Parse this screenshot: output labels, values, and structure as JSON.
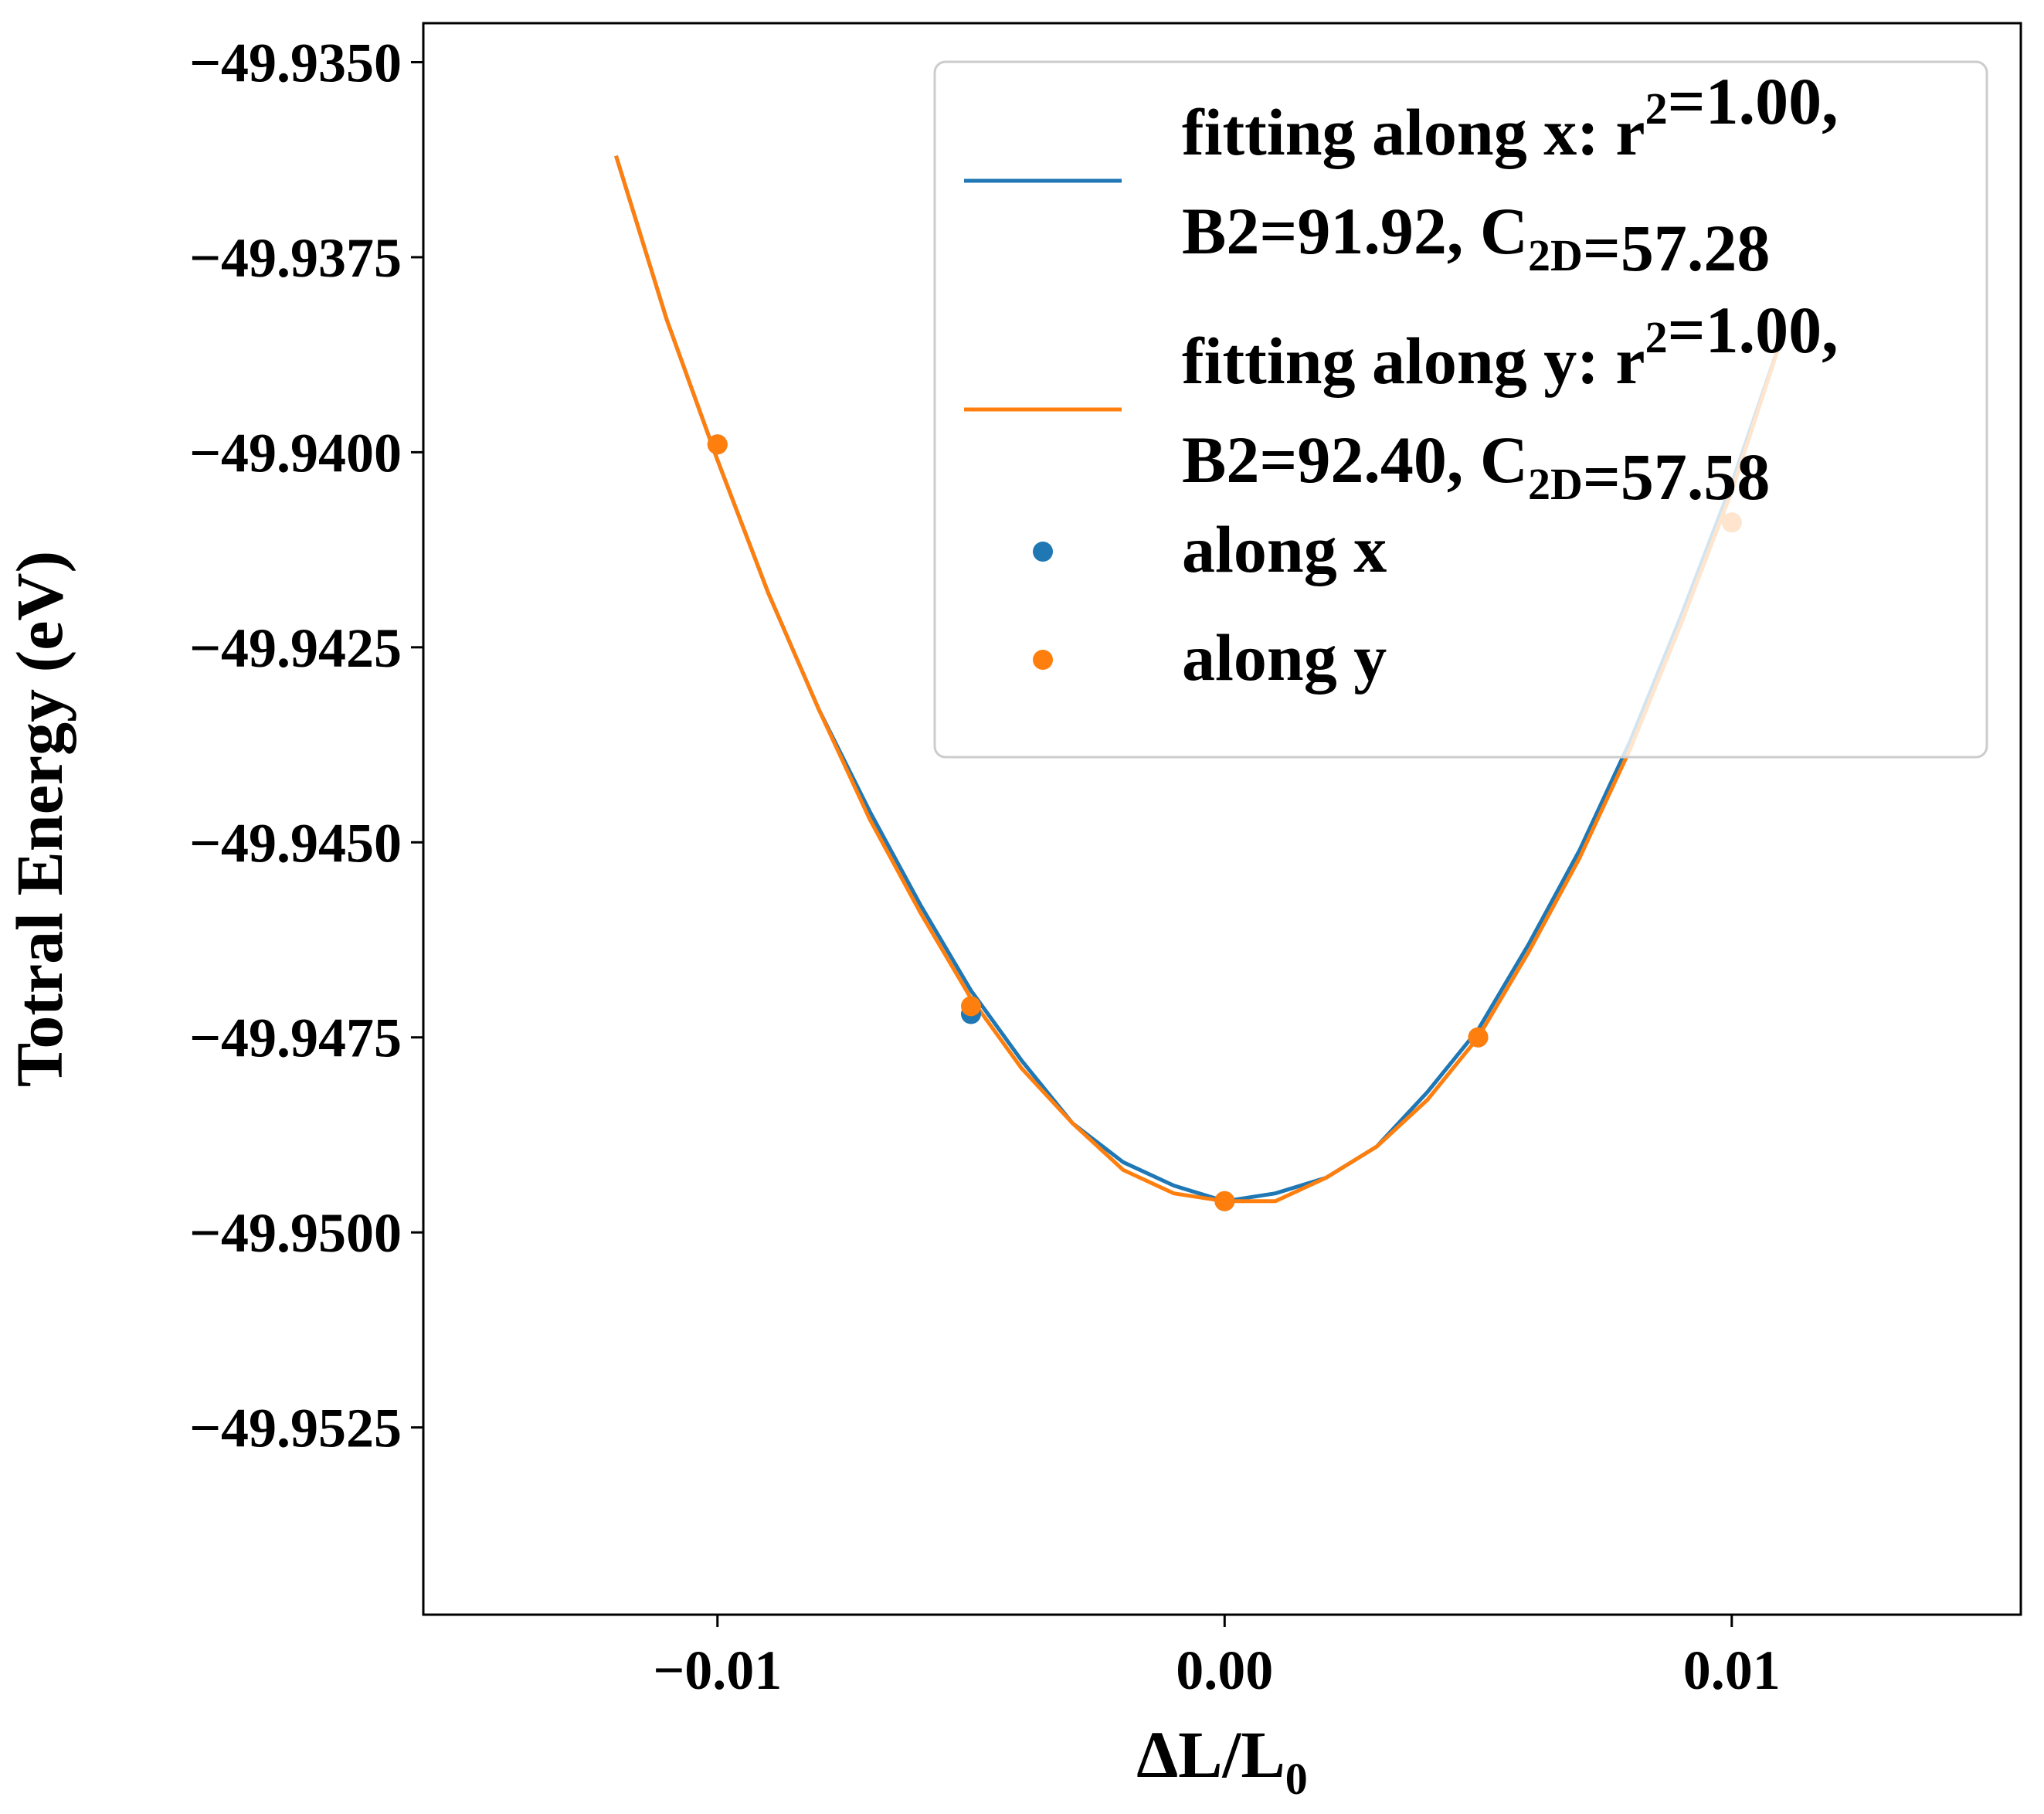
{
  "chart_data": {
    "type": "line",
    "xlabel": "ΔL/L",
    "xlabel_subscript": "0",
    "ylabel": "Totral Energy (eV)",
    "xlim": [
      -0.0158,
      0.0157
    ],
    "ylim": [
      -49.9549,
      -49.9345
    ],
    "xticks": [
      -0.01,
      0.0,
      0.01
    ],
    "xtick_labels": [
      "−0.01",
      "0.00",
      "0.01"
    ],
    "yticks": [
      -49.935,
      -49.9375,
      -49.94,
      -49.9425,
      -49.945,
      -49.9475,
      -49.95,
      -49.9525
    ],
    "ytick_labels": [
      "−49.9350",
      "−49.9375",
      "−49.9400",
      "−49.9425",
      "−49.9450",
      "−49.9475",
      "−49.9500",
      "−49.9525"
    ],
    "grid": false,
    "legend_placement": "upper right",
    "colors": {
      "x": "#1f77b4",
      "y": "#ff7f0e"
    },
    "series": [
      {
        "kind": "line",
        "color": "#1f77b4",
        "legend_lines": [
          [
            {
              "t": "fitting along x: r"
            },
            {
              "t": "2",
              "sup": true
            },
            {
              "t": "=1.00,"
            }
          ],
          [
            {
              "t": "B2=91.92, C"
            },
            {
              "t": "2D",
              "sub": true
            },
            {
              "t": "=57.28"
            }
          ]
        ],
        "x": [
          -0.012,
          -0.011,
          -0.01,
          -0.009,
          -0.008,
          -0.007,
          -0.006,
          -0.005,
          -0.004,
          -0.003,
          -0.002,
          -0.001,
          0.0,
          0.001,
          0.002,
          0.003,
          0.004,
          0.005,
          0.006,
          0.007,
          0.008,
          0.009,
          0.01,
          0.011
        ],
        "y": [
          -49.9362,
          -49.9383,
          -49.9401,
          -49.9418,
          -49.9433,
          -49.9446,
          -49.9458,
          -49.9469,
          -49.9478,
          -49.9486,
          -49.9491,
          -49.9494,
          -49.9496,
          -49.9495,
          -49.9493,
          -49.9489,
          -49.9482,
          -49.9474,
          -49.9463,
          -49.9451,
          -49.9437,
          -49.9421,
          -49.9404,
          -49.9385
        ]
      },
      {
        "kind": "line",
        "color": "#ff7f0e",
        "legend_lines": [
          [
            {
              "t": "fitting along y: r"
            },
            {
              "t": "2",
              "sup": true
            },
            {
              "t": "=1.00,"
            }
          ],
          [
            {
              "t": "B2=92.40, C"
            },
            {
              "t": "2D",
              "sub": true
            },
            {
              "t": "=57.58"
            }
          ]
        ],
        "x": [
          -0.012,
          -0.011,
          -0.01,
          -0.009,
          -0.008,
          -0.007,
          -0.006,
          -0.005,
          -0.004,
          -0.003,
          -0.002,
          -0.001,
          0.0,
          0.001,
          0.002,
          0.003,
          0.004,
          0.005,
          0.006,
          0.007,
          0.008,
          0.009,
          0.01,
          0.011
        ],
        "y": [
          -49.9362,
          -49.9383,
          -49.9401,
          -49.9418,
          -49.9433,
          -49.9447,
          -49.9459,
          -49.947,
          -49.9479,
          -49.9486,
          -49.9492,
          -49.9495,
          -49.9496,
          -49.9496,
          -49.9493,
          -49.9489,
          -49.9483,
          -49.9475,
          -49.9464,
          -49.9452,
          -49.9438,
          -49.9422,
          -49.9405,
          -49.9385
        ]
      },
      {
        "kind": "scatter",
        "name": "along x",
        "color": "#1f77b4",
        "x": [
          -0.01,
          -0.005,
          0.0,
          0.005,
          0.01
        ],
        "y": [
          -49.9399,
          -49.9472,
          -49.9496,
          -49.9475,
          -49.9409
        ]
      },
      {
        "kind": "scatter",
        "name": "along y",
        "color": "#ff7f0e",
        "x": [
          -0.01,
          -0.005,
          0.0,
          0.005,
          0.01
        ],
        "y": [
          -49.9399,
          -49.9471,
          -49.9496,
          -49.9475,
          -49.9409
        ]
      }
    ]
  }
}
